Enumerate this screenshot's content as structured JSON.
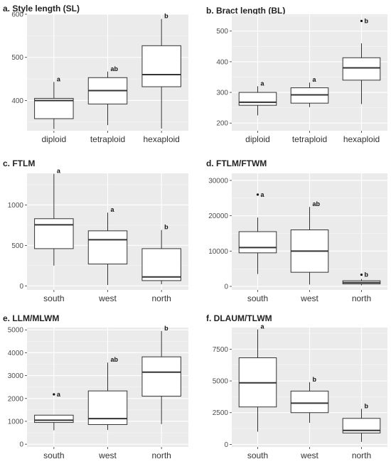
{
  "chart_data": [
    {
      "type": "box",
      "title": "a. Style length (SL)",
      "categories": [
        "diploid",
        "tetraploid",
        "hexaploid"
      ],
      "ylim": [
        330,
        600
      ],
      "yticks": [
        400,
        500,
        600
      ],
      "grid": true,
      "boxes": [
        {
          "min": 334,
          "q1": 358,
          "median": 400,
          "q3": 405,
          "max": 443,
          "outliers": [],
          "letter": "a"
        },
        {
          "min": 343,
          "q1": 392,
          "median": 423,
          "q3": 453,
          "max": 467,
          "outliers": [],
          "letter": "ab"
        },
        {
          "min": 335,
          "q1": 432,
          "median": 460,
          "q3": 527,
          "max": 589,
          "outliers": [],
          "letter": "b"
        }
      ]
    },
    {
      "type": "box",
      "title": "b. Bract length (BL)",
      "categories": [
        "diploid",
        "tetraploid",
        "hexaploid"
      ],
      "ylim": [
        175,
        555
      ],
      "yticks": [
        200,
        300,
        400,
        500
      ],
      "grid": true,
      "boxes": [
        {
          "min": 225,
          "q1": 258,
          "median": 268,
          "q3": 300,
          "max": 320,
          "outliers": [],
          "letter": "a"
        },
        {
          "min": 252,
          "q1": 265,
          "median": 292,
          "q3": 315,
          "max": 332,
          "outliers": [],
          "letter": "a"
        },
        {
          "min": 262,
          "q1": 340,
          "median": 380,
          "q3": 413,
          "max": 460,
          "outliers": [
            533
          ],
          "letter": "b"
        }
      ]
    },
    {
      "type": "box",
      "title": "c. FTLM",
      "categories": [
        "south",
        "west",
        "north"
      ],
      "ylim": [
        -50,
        1390
      ],
      "yticks": [
        0,
        500,
        1000
      ],
      "grid": true,
      "boxes": [
        {
          "min": 250,
          "q1": 460,
          "median": 755,
          "q3": 830,
          "max": 1385,
          "outliers": [],
          "letter": "a"
        },
        {
          "min": 10,
          "q1": 270,
          "median": 570,
          "q3": 680,
          "max": 905,
          "outliers": [],
          "letter": "a"
        },
        {
          "min": 20,
          "q1": 65,
          "median": 110,
          "q3": 460,
          "max": 690,
          "outliers": [],
          "letter": "b"
        }
      ]
    },
    {
      "type": "box",
      "title": "d. FTLM/FTWM",
      "categories": [
        "south",
        "west",
        "north"
      ],
      "ylim": [
        -1000,
        32000
      ],
      "yticks": [
        0,
        10000,
        20000,
        30000
      ],
      "grid": true,
      "boxes": [
        {
          "min": 3500,
          "q1": 9500,
          "median": 11000,
          "q3": 15500,
          "max": 19500,
          "outliers": [
            26000
          ],
          "letter": "a"
        },
        {
          "min": 500,
          "q1": 4000,
          "median": 10000,
          "q3": 16000,
          "max": 22500,
          "outliers": [],
          "letter": "ab"
        },
        {
          "min": 300,
          "q1": 700,
          "median": 1100,
          "q3": 1600,
          "max": 2100,
          "outliers": [
            3300
          ],
          "letter": "b"
        }
      ]
    },
    {
      "type": "box",
      "title": "e. LLM/MLWM",
      "categories": [
        "south",
        "west",
        "north"
      ],
      "ylim": [
        -120,
        5100
      ],
      "yticks": [
        0,
        1000,
        2000,
        3000,
        4000,
        5000
      ],
      "grid": true,
      "boxes": [
        {
          "min": 610,
          "q1": 950,
          "median": 1050,
          "q3": 1270,
          "max": 1270,
          "outliers": [
            2180
          ],
          "letter": "a"
        },
        {
          "min": 620,
          "q1": 860,
          "median": 1120,
          "q3": 2330,
          "max": 3570,
          "outliers": [],
          "letter": "ab"
        },
        {
          "min": 880,
          "q1": 2100,
          "median": 3150,
          "q3": 3820,
          "max": 4950,
          "outliers": [],
          "letter": "b"
        }
      ]
    },
    {
      "type": "box",
      "title": "f. DLAUM/TLWM",
      "categories": [
        "south",
        "west",
        "north"
      ],
      "ylim": [
        -200,
        9200
      ],
      "yticks": [
        0,
        2500,
        5000,
        7500
      ],
      "grid": true,
      "boxes": [
        {
          "min": 1000,
          "q1": 2950,
          "median": 4850,
          "q3": 6820,
          "max": 9050,
          "outliers": [],
          "letter": "a"
        },
        {
          "min": 1700,
          "q1": 2500,
          "median": 3250,
          "q3": 4200,
          "max": 4900,
          "outliers": [],
          "letter": "b"
        },
        {
          "min": 200,
          "q1": 900,
          "median": 1100,
          "q3": 2050,
          "max": 2800,
          "outliers": [],
          "letter": "b"
        }
      ]
    }
  ]
}
